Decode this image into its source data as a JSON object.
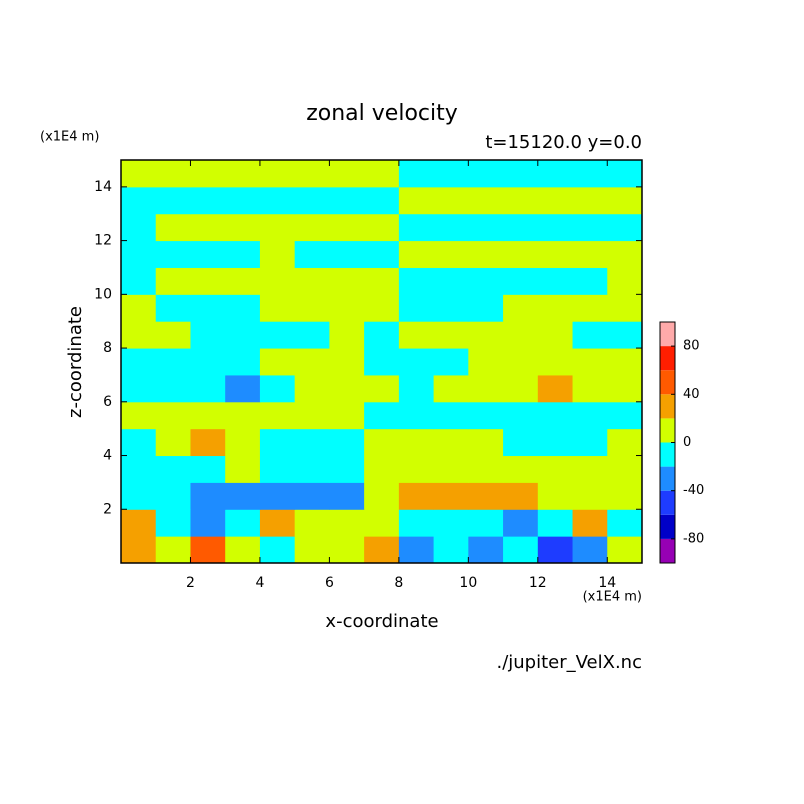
{
  "chart_data": {
    "type": "contour",
    "title": "zonal velocity",
    "subtitle": "t=15120.0 y=0.0",
    "x_label": "x-coordinate",
    "y_label": "z-coordinate",
    "x_unit": "(x1E4 m)",
    "y_unit": "(x1E4 m)",
    "source": "./jupiter_VelX.nc",
    "xlim": [
      0,
      15
    ],
    "ylim": [
      0,
      15
    ],
    "xticks": [
      2,
      4,
      6,
      8,
      10,
      12,
      14
    ],
    "yticks": [
      2,
      4,
      6,
      8,
      10,
      12,
      14
    ],
    "x": [
      0.5,
      1.5,
      2.5,
      3.5,
      4.5,
      5.5,
      6.5,
      7.5,
      8.5,
      9.5,
      10.5,
      11.5,
      12.5,
      13.5,
      14.5
    ],
    "y": [
      0.5,
      1.5,
      2.5,
      3.5,
      4.5,
      5.5,
      6.5,
      7.5,
      8.5,
      9.5,
      10.5,
      11.5,
      12.5,
      13.5,
      14.5
    ],
    "values": [
      [
        30,
        10,
        50,
        10,
        -10,
        10,
        10,
        30,
        -30,
        -10,
        -30,
        -10,
        -50,
        -30,
        10
      ],
      [
        30,
        -10,
        -30,
        -10,
        30,
        10,
        10,
        10,
        -10,
        -10,
        -10,
        -30,
        -10,
        30,
        -10
      ],
      [
        -10,
        -10,
        -30,
        -30,
        -30,
        -30,
        -30,
        10,
        30,
        30,
        30,
        30,
        10,
        10,
        10
      ],
      [
        -10,
        -10,
        -10,
        10,
        -10,
        -10,
        -10,
        10,
        10,
        10,
        10,
        10,
        10,
        10,
        10
      ],
      [
        -10,
        10,
        30,
        10,
        -10,
        -10,
        -10,
        10,
        10,
        10,
        10,
        -10,
        -10,
        -10,
        10
      ],
      [
        10,
        10,
        10,
        10,
        10,
        10,
        10,
        -10,
        -10,
        -10,
        -10,
        -10,
        -10,
        -10,
        -10
      ],
      [
        -10,
        -10,
        -10,
        -30,
        -10,
        10,
        10,
        10,
        -10,
        10,
        10,
        10,
        30,
        10,
        10
      ],
      [
        -10,
        -10,
        -10,
        -10,
        10,
        10,
        10,
        -10,
        -10,
        -10,
        10,
        10,
        10,
        10,
        10
      ],
      [
        10,
        10,
        -10,
        -10,
        -10,
        -10,
        10,
        -10,
        10,
        10,
        10,
        10,
        10,
        -10,
        -10
      ],
      [
        10,
        -10,
        -10,
        -10,
        10,
        10,
        10,
        10,
        -10,
        -10,
        -10,
        10,
        10,
        10,
        10
      ],
      [
        -10,
        10,
        10,
        10,
        10,
        10,
        10,
        10,
        -10,
        -10,
        -10,
        -10,
        -10,
        -10,
        10
      ],
      [
        -10,
        -10,
        -10,
        -10,
        10,
        -10,
        -10,
        -10,
        10,
        10,
        10,
        10,
        10,
        10,
        10
      ],
      [
        -10,
        10,
        10,
        10,
        10,
        10,
        10,
        10,
        -10,
        -10,
        -10,
        -10,
        -10,
        -10,
        -10
      ],
      [
        -10,
        -10,
        -10,
        -10,
        -10,
        -10,
        -10,
        -10,
        10,
        10,
        10,
        10,
        10,
        10,
        10
      ],
      [
        10,
        10,
        10,
        10,
        10,
        10,
        10,
        10,
        -10,
        -10,
        -10,
        -10,
        -10,
        -10,
        -10
      ]
    ],
    "levels": [
      -100,
      -80,
      -60,
      -40,
      -20,
      0,
      20,
      40,
      60,
      80,
      100
    ],
    "colors": [
      "#9600b4",
      "#0000c8",
      "#1e3cff",
      "#1e8cff",
      "#00ffff",
      "#d2ff00",
      "#f5a000",
      "#ff5a00",
      "#ff1e00",
      "#ffaaaa"
    ],
    "colorbar_ticks": [
      -80,
      -40,
      0,
      40,
      80
    ]
  }
}
